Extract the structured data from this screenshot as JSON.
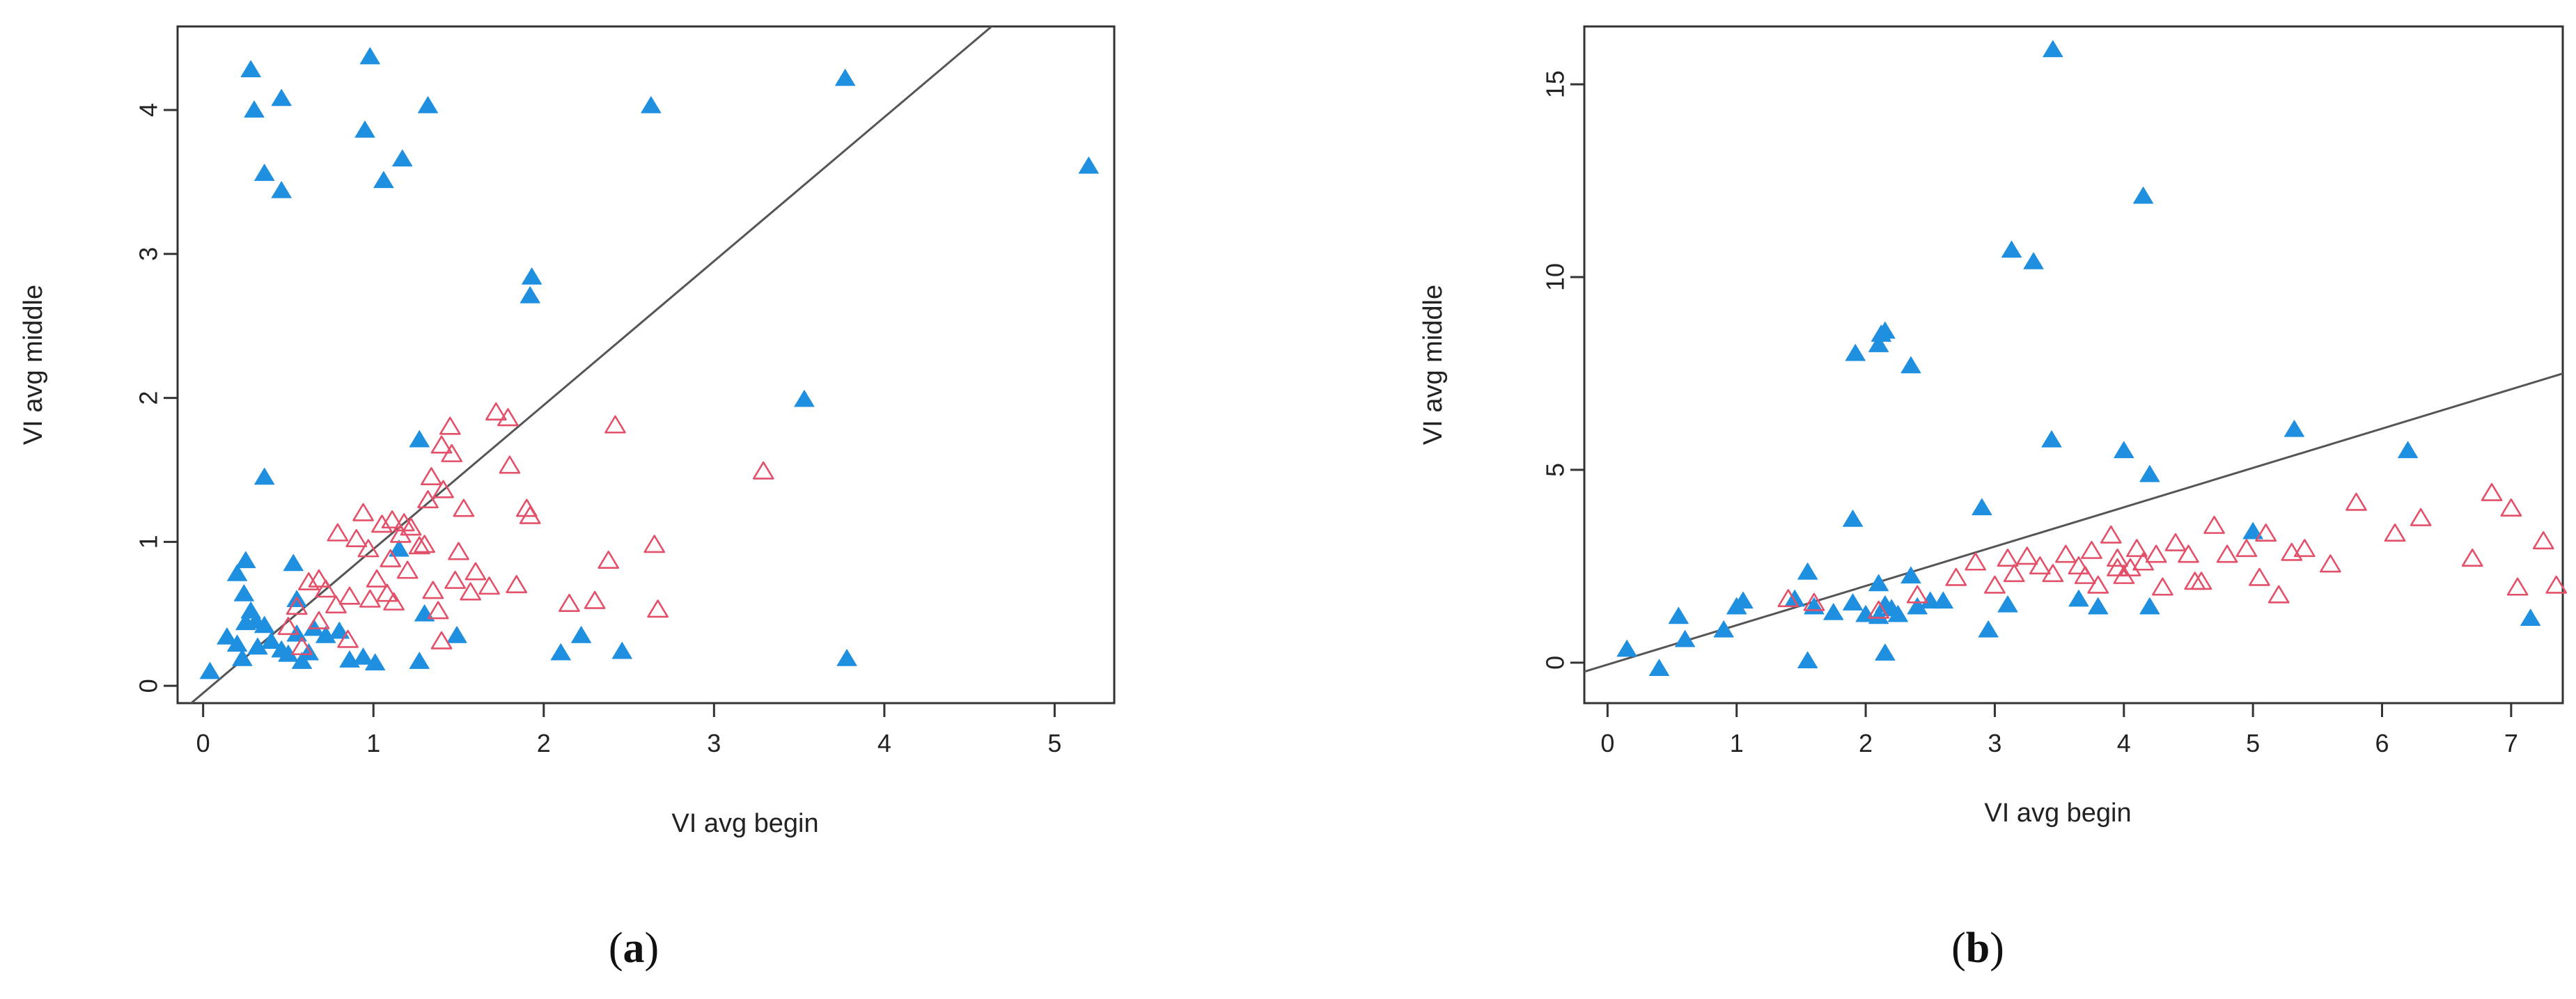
{
  "colors": {
    "group_a": "#1f8fe0",
    "group_b": "#e2506a",
    "fit_line": "#555555",
    "frame": "#333333"
  },
  "chart_data": [
    {
      "type": "scatter",
      "panel_label": {
        "open": "(",
        "letter": "a",
        "close": ")"
      },
      "xlabel": "VI avg begin",
      "ylabel": "VI avg middle",
      "xlim": [
        -0.15,
        5.35
      ],
      "ylim": [
        -0.12,
        4.58
      ],
      "xticks": [
        0,
        1,
        2,
        3,
        4,
        5
      ],
      "yticks": [
        0,
        1,
        2,
        3,
        4
      ],
      "fit_line": {
        "intercept": -0.05,
        "slope": 1.0
      },
      "series": [
        {
          "marker": "filled-triangle",
          "points": [
            [
              0.28,
              4.28
            ],
            [
              0.3,
              4.0
            ],
            [
              0.46,
              4.08
            ],
            [
              0.36,
              3.56
            ],
            [
              0.46,
              3.44
            ],
            [
              0.98,
              4.37
            ],
            [
              0.95,
              3.86
            ],
            [
              1.32,
              4.03
            ],
            [
              1.17,
              3.66
            ],
            [
              1.06,
              3.51
            ],
            [
              2.63,
              4.03
            ],
            [
              3.77,
              4.22
            ],
            [
              5.2,
              3.61
            ],
            [
              1.93,
              2.84
            ],
            [
              1.92,
              2.71
            ],
            [
              3.53,
              1.99
            ],
            [
              0.36,
              1.45
            ],
            [
              1.27,
              1.71
            ],
            [
              0.25,
              0.87
            ],
            [
              0.2,
              0.78
            ],
            [
              0.24,
              0.64
            ],
            [
              0.53,
              0.85
            ],
            [
              0.55,
              0.6
            ],
            [
              0.28,
              0.52
            ],
            [
              0.31,
              0.45
            ],
            [
              0.36,
              0.42
            ],
            [
              0.25,
              0.44
            ],
            [
              0.14,
              0.34
            ],
            [
              0.2,
              0.29
            ],
            [
              0.23,
              0.19
            ],
            [
              0.32,
              0.27
            ],
            [
              0.4,
              0.31
            ],
            [
              0.46,
              0.25
            ],
            [
              0.5,
              0.22
            ],
            [
              0.58,
              0.17
            ],
            [
              0.62,
              0.23
            ],
            [
              0.55,
              0.36
            ],
            [
              0.65,
              0.4
            ],
            [
              0.72,
              0.35
            ],
            [
              0.8,
              0.38
            ],
            [
              0.86,
              0.18
            ],
            [
              0.94,
              0.2
            ],
            [
              1.01,
              0.16
            ],
            [
              0.04,
              0.1
            ],
            [
              1.27,
              0.17
            ],
            [
              1.3,
              0.5
            ],
            [
              1.49,
              0.35
            ],
            [
              1.15,
              0.95
            ],
            [
              2.1,
              0.23
            ],
            [
              2.22,
              0.35
            ],
            [
              2.46,
              0.24
            ],
            [
              3.78,
              0.19
            ]
          ]
        },
        {
          "marker": "open-triangle",
          "points": [
            [
              1.72,
              1.9
            ],
            [
              1.79,
              1.86
            ],
            [
              1.45,
              1.8
            ],
            [
              1.46,
              1.61
            ],
            [
              1.4,
              1.67
            ],
            [
              1.34,
              1.45
            ],
            [
              1.32,
              1.29
            ],
            [
              1.41,
              1.36
            ],
            [
              1.53,
              1.23
            ],
            [
              1.9,
              1.23
            ],
            [
              1.92,
              1.18
            ],
            [
              1.8,
              1.53
            ],
            [
              0.79,
              1.06
            ],
            [
              0.9,
              1.02
            ],
            [
              0.94,
              1.2
            ],
            [
              1.05,
              1.12
            ],
            [
              1.11,
              1.15
            ],
            [
              1.16,
              1.05
            ],
            [
              1.22,
              1.1
            ],
            [
              1.27,
              0.97
            ],
            [
              0.97,
              0.95
            ],
            [
              1.1,
              0.88
            ],
            [
              1.2,
              0.8
            ],
            [
              1.35,
              0.66
            ],
            [
              1.48,
              0.73
            ],
            [
              1.57,
              0.65
            ],
            [
              1.6,
              0.79
            ],
            [
              0.62,
              0.72
            ],
            [
              0.72,
              0.67
            ],
            [
              0.78,
              0.56
            ],
            [
              0.86,
              0.62
            ],
            [
              0.98,
              0.6
            ],
            [
              1.08,
              0.64
            ],
            [
              1.12,
              0.58
            ],
            [
              0.58,
              0.27
            ],
            [
              0.68,
              0.45
            ],
            [
              0.85,
              0.32
            ],
            [
              1.4,
              0.31
            ],
            [
              1.38,
              0.52
            ],
            [
              1.68,
              0.69
            ],
            [
              1.84,
              0.7
            ],
            [
              2.15,
              0.57
            ],
            [
              2.3,
              0.59
            ],
            [
              2.38,
              0.87
            ],
            [
              2.42,
              1.81
            ],
            [
              2.65,
              0.98
            ],
            [
              2.67,
              0.53
            ],
            [
              3.29,
              1.49
            ],
            [
              0.5,
              0.41
            ],
            [
              0.55,
              0.55
            ],
            [
              0.68,
              0.74
            ],
            [
              1.02,
              0.74
            ],
            [
              1.18,
              1.13
            ],
            [
              1.3,
              0.98
            ],
            [
              1.5,
              0.93
            ]
          ]
        }
      ]
    },
    {
      "type": "scatter",
      "panel_label": {
        "open": "(",
        "letter": "b",
        "close": ")"
      },
      "xlabel": "VI avg begin",
      "ylabel": "VI avg middle",
      "xlim": [
        -0.18,
        7.4
      ],
      "ylim": [
        -1.05,
        16.5
      ],
      "xticks": [
        0,
        1,
        2,
        3,
        4,
        5,
        6,
        7
      ],
      "yticks": [
        0,
        5,
        10,
        15
      ],
      "fit_line": {
        "intercept": -0.05,
        "slope": 1.02
      },
      "series": [
        {
          "marker": "filled-triangle",
          "points": [
            [
              3.45,
              15.9
            ],
            [
              4.15,
              12.1
            ],
            [
              3.13,
              10.7
            ],
            [
              3.3,
              10.4
            ],
            [
              2.12,
              8.52
            ],
            [
              2.15,
              8.6
            ],
            [
              2.1,
              8.25
            ],
            [
              1.92,
              8.02
            ],
            [
              2.35,
              7.7
            ],
            [
              3.44,
              5.78
            ],
            [
              5.32,
              6.05
            ],
            [
              4.0,
              5.5
            ],
            [
              6.2,
              5.5
            ],
            [
              4.2,
              4.88
            ],
            [
              2.9,
              4.02
            ],
            [
              1.9,
              3.72
            ],
            [
              2.35,
              2.25
            ],
            [
              2.1,
              2.05
            ],
            [
              1.55,
              2.35
            ],
            [
              1.45,
              1.65
            ],
            [
              1.6,
              1.45
            ],
            [
              1.75,
              1.3
            ],
            [
              1.9,
              1.55
            ],
            [
              2.0,
              1.25
            ],
            [
              2.2,
              1.4
            ],
            [
              2.25,
              1.25
            ],
            [
              2.1,
              1.2
            ],
            [
              2.15,
              1.5
            ],
            [
              2.5,
              1.6
            ],
            [
              2.4,
              1.45
            ],
            [
              2.6,
              1.6
            ],
            [
              3.1,
              1.5
            ],
            [
              3.65,
              1.65
            ],
            [
              3.8,
              1.45
            ],
            [
              4.2,
              1.45
            ],
            [
              0.15,
              0.35
            ],
            [
              0.55,
              1.2
            ],
            [
              0.6,
              0.6
            ],
            [
              0.9,
              0.85
            ],
            [
              1.0,
              1.45
            ],
            [
              1.05,
              1.6
            ],
            [
              0.4,
              -0.15
            ],
            [
              1.55,
              0.05
            ],
            [
              2.15,
              0.25
            ],
            [
              2.95,
              0.85
            ],
            [
              5.0,
              3.4
            ],
            [
              7.15,
              1.15
            ]
          ]
        },
        {
          "marker": "open-triangle",
          "points": [
            [
              1.4,
              1.65
            ],
            [
              1.6,
              1.55
            ],
            [
              2.1,
              1.35
            ],
            [
              2.4,
              1.75
            ],
            [
              2.7,
              2.2
            ],
            [
              2.85,
              2.6
            ],
            [
              3.0,
              2.0
            ],
            [
              3.1,
              2.7
            ],
            [
              3.15,
              2.3
            ],
            [
              3.25,
              2.75
            ],
            [
              3.35,
              2.5
            ],
            [
              3.45,
              2.3
            ],
            [
              3.55,
              2.8
            ],
            [
              3.65,
              2.5
            ],
            [
              3.7,
              2.25
            ],
            [
              3.75,
              2.9
            ],
            [
              3.8,
              2.0
            ],
            [
              3.9,
              3.3
            ],
            [
              3.95,
              2.7
            ],
            [
              4.0,
              2.25
            ],
            [
              4.05,
              2.45
            ],
            [
              4.1,
              2.95
            ],
            [
              4.15,
              2.6
            ],
            [
              4.25,
              2.8
            ],
            [
              4.3,
              1.95
            ],
            [
              4.4,
              3.1
            ],
            [
              4.5,
              2.8
            ],
            [
              4.6,
              2.1
            ],
            [
              4.7,
              3.55
            ],
            [
              4.8,
              2.8
            ],
            [
              4.95,
              2.95
            ],
            [
              5.05,
              2.2
            ],
            [
              5.1,
              3.35
            ],
            [
              5.2,
              1.75
            ],
            [
              5.3,
              2.85
            ],
            [
              5.4,
              2.95
            ],
            [
              5.6,
              2.55
            ],
            [
              5.8,
              4.15
            ],
            [
              6.1,
              3.35
            ],
            [
              6.3,
              3.75
            ],
            [
              6.7,
              2.7
            ],
            [
              6.85,
              4.4
            ],
            [
              7.0,
              4.0
            ],
            [
              7.05,
              1.95
            ],
            [
              7.25,
              3.15
            ],
            [
              7.35,
              2.0
            ],
            [
              4.55,
              2.1
            ],
            [
              3.95,
              2.45
            ]
          ]
        }
      ]
    }
  ]
}
